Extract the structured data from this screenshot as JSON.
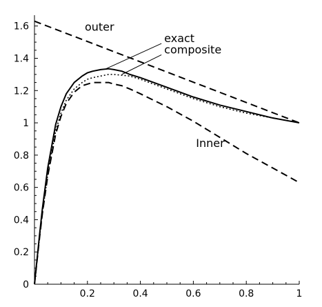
{
  "chart_data": {
    "type": "line",
    "title": "",
    "xlabel": "",
    "ylabel": "",
    "xlim": [
      0,
      1
    ],
    "ylim": [
      0,
      1.65
    ],
    "x_ticks": [
      0.2,
      0.4,
      0.6,
      0.8,
      1
    ],
    "x_tick_labels": [
      "0.2",
      "0.4",
      "0.6",
      "0.8",
      "1"
    ],
    "y_ticks": [
      0,
      0.2,
      0.4,
      0.6,
      0.8,
      1,
      1.2,
      1.4,
      1.6
    ],
    "y_tick_labels": [
      "0",
      "0.2",
      "0.4",
      "0.6",
      "0.8",
      "1",
      "1.2",
      "1.4",
      "1.6"
    ],
    "grid": false,
    "legend": "none",
    "annotations": [
      {
        "text": "outer",
        "series": "outer",
        "x": 0.19,
        "y": 1.57,
        "pointer": false
      },
      {
        "text": "exact",
        "series": "exact",
        "x": 0.49,
        "y": 1.5,
        "pointer": true,
        "pointer_to": {
          "x": 0.27,
          "y": 1.335
        }
      },
      {
        "text": "composite",
        "series": "composite",
        "x": 0.49,
        "y": 1.43,
        "pointer": true,
        "pointer_to": {
          "x": 0.33,
          "y": 1.3
        }
      },
      {
        "text": "Inner",
        "series": "inner",
        "x": 0.61,
        "y": 0.85,
        "pointer": false
      }
    ],
    "series": [
      {
        "style": "solid",
        "color": "#000000",
        "x": [
          0,
          0.01,
          0.02,
          0.03,
          0.05,
          0.08,
          0.1,
          0.12,
          0.15,
          0.18,
          0.2,
          0.22,
          0.25,
          0.28,
          0.3,
          0.33,
          0.36,
          0.4,
          0.45,
          0.5,
          0.6,
          0.7,
          0.8,
          0.9,
          1.0
        ],
        "y": [
          0,
          0.16,
          0.32,
          0.47,
          0.72,
          0.99,
          1.1,
          1.18,
          1.25,
          1.29,
          1.31,
          1.32,
          1.33,
          1.335,
          1.33,
          1.32,
          1.3,
          1.28,
          1.25,
          1.22,
          1.16,
          1.11,
          1.07,
          1.03,
          1.0
        ]
      },
      {
        "style": "dotted",
        "color": "#000000",
        "x": [
          0,
          0.01,
          0.02,
          0.03,
          0.05,
          0.08,
          0.1,
          0.12,
          0.15,
          0.18,
          0.2,
          0.22,
          0.25,
          0.28,
          0.3,
          0.33,
          0.36,
          0.4,
          0.45,
          0.5,
          0.6,
          0.7,
          0.8,
          0.9,
          1.0
        ],
        "y": [
          0,
          0.15,
          0.3,
          0.44,
          0.68,
          0.95,
          1.06,
          1.14,
          1.21,
          1.25,
          1.27,
          1.28,
          1.29,
          1.3,
          1.3,
          1.295,
          1.29,
          1.27,
          1.24,
          1.21,
          1.15,
          1.1,
          1.06,
          1.03,
          1.0
        ]
      },
      {
        "style": "dashed",
        "color": "#000000",
        "x": [
          0,
          0.01,
          0.02,
          0.03,
          0.05,
          0.08,
          0.1,
          0.12,
          0.15,
          0.18,
          0.2,
          0.22,
          0.25,
          0.28,
          0.3,
          0.33,
          0.36,
          0.4,
          0.45,
          0.5,
          0.6,
          0.7,
          0.8,
          0.9,
          1.0
        ],
        "y": [
          0,
          0.15,
          0.3,
          0.44,
          0.67,
          0.93,
          1.04,
          1.12,
          1.19,
          1.23,
          1.24,
          1.25,
          1.25,
          1.25,
          1.24,
          1.23,
          1.21,
          1.18,
          1.14,
          1.1,
          1.01,
          0.91,
          0.81,
          0.72,
          0.63
        ]
      },
      {
        "style": "dashed",
        "color": "#000000",
        "x": [
          0,
          1
        ],
        "y": [
          1.63,
          1.0
        ]
      }
    ]
  }
}
